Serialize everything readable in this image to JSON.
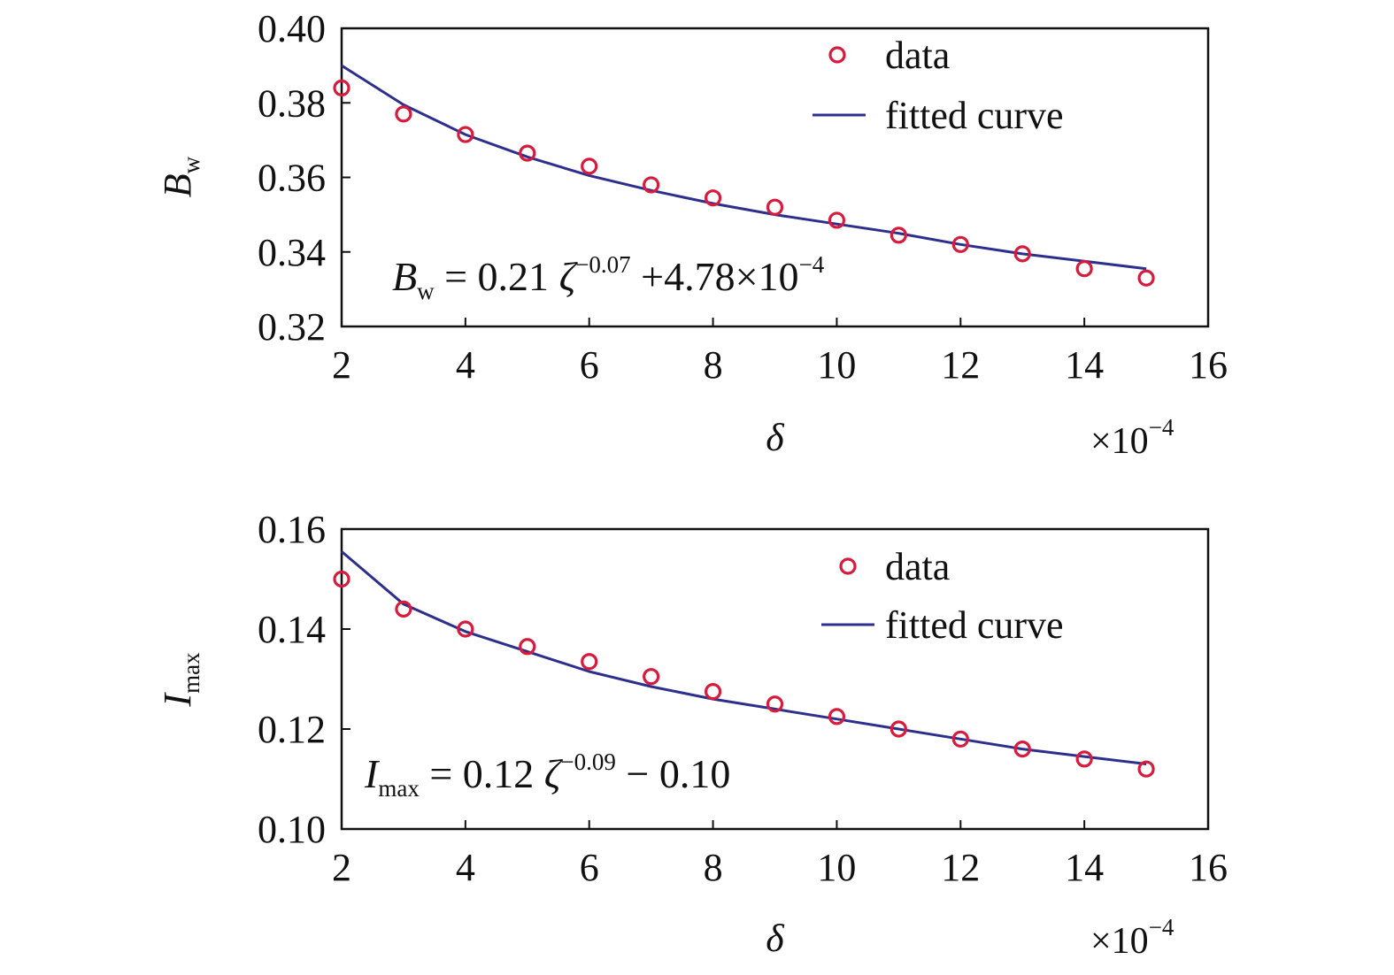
{
  "colors": {
    "marker": "#d81b3c",
    "curve": "#2e2f8c",
    "frame": "#111111"
  },
  "chart_data": [
    {
      "type": "scatter",
      "xlabel": "δ",
      "x_multiplier": {
        "base": "×10",
        "exp": "−4"
      },
      "ylabel": {
        "main": "B",
        "sub": "w"
      },
      "xlim": [
        2,
        16
      ],
      "ylim": [
        0.32,
        0.4
      ],
      "x_ticks": [
        "2",
        "4",
        "6",
        "8",
        "10",
        "12",
        "14",
        "16"
      ],
      "y_ticks": [
        "0.32",
        "0.34",
        "0.36",
        "0.38",
        "0.40"
      ],
      "legend": {
        "position": "top-right",
        "data_label": "data",
        "curve_label": "fitted curve"
      },
      "equation": {
        "lhs": "B",
        "lhs_sub": "w",
        "mid": " = 0.21 ",
        "var": "ζ",
        "exp": "−0.07",
        "tail": " +4.78×10",
        "tail_exp": "−4"
      },
      "series": [
        {
          "name": "data",
          "x": [
            2,
            3,
            4,
            5,
            6,
            7,
            8,
            9,
            10,
            11,
            12,
            13,
            14,
            15
          ],
          "y": [
            0.384,
            0.377,
            0.3715,
            0.3665,
            0.363,
            0.358,
            0.3545,
            0.352,
            0.3485,
            0.3445,
            0.342,
            0.3395,
            0.3355,
            0.333
          ]
        },
        {
          "name": "fitted curve",
          "x": [
            2,
            3,
            4,
            5,
            6,
            7,
            8,
            9,
            10,
            11,
            12,
            13,
            14,
            15
          ],
          "y": [
            0.39,
            0.3795,
            0.3715,
            0.3655,
            0.3605,
            0.3565,
            0.353,
            0.35,
            0.3475,
            0.345,
            0.342,
            0.3395,
            0.3375,
            0.3355
          ]
        }
      ]
    },
    {
      "type": "scatter",
      "xlabel": "δ",
      "x_multiplier": {
        "base": "×10",
        "exp": "−4"
      },
      "ylabel": {
        "main": "I",
        "sub": "max"
      },
      "xlim": [
        2,
        16
      ],
      "ylim": [
        0.1,
        0.16
      ],
      "x_ticks": [
        "2",
        "4",
        "6",
        "8",
        "10",
        "12",
        "14",
        "16"
      ],
      "y_ticks": [
        "0.10",
        "0.12",
        "0.14",
        "0.16"
      ],
      "legend": {
        "position": "top-right",
        "data_label": "data",
        "curve_label": "fitted curve"
      },
      "equation": {
        "lhs": "I",
        "lhs_sub": "max",
        "mid": " = 0.12 ",
        "var": "ζ",
        "exp": "−0.09",
        "tail": "  − 0.10",
        "tail_exp": ""
      },
      "series": [
        {
          "name": "data",
          "x": [
            2,
            3,
            4,
            5,
            6,
            7,
            8,
            9,
            10,
            11,
            12,
            13,
            14,
            15
          ],
          "y": [
            0.15,
            0.144,
            0.14,
            0.1365,
            0.1335,
            0.1305,
            0.1275,
            0.125,
            0.1225,
            0.12,
            0.118,
            0.116,
            0.114,
            0.112
          ]
        },
        {
          "name": "fitted curve",
          "x": [
            2,
            3,
            4,
            5,
            6,
            7,
            8,
            9,
            10,
            11,
            12,
            13,
            14,
            15
          ],
          "y": [
            0.1555,
            0.145,
            0.1395,
            0.1355,
            0.1315,
            0.1285,
            0.126,
            0.124,
            0.122,
            0.12,
            0.118,
            0.116,
            0.1145,
            0.113
          ]
        }
      ]
    }
  ]
}
